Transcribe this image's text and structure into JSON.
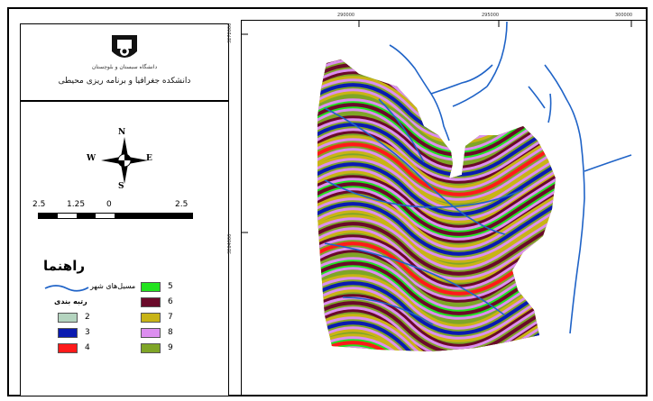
{
  "header": {
    "logo_caption": "دانشگاه سیستان و بلوچستان",
    "title": "دانشکده جغرافیا و برنامه ریزی محیطی"
  },
  "compass": {
    "n": "N",
    "s": "S",
    "e": "E",
    "w": "W"
  },
  "scale": {
    "labels": [
      "2.5",
      "1.25",
      "0",
      "2.5"
    ]
  },
  "legend": {
    "title": "راهنما",
    "river_label": "مسیل‌های شهر",
    "elevation_title": "رتبه بندی",
    "classes": [
      {
        "label": "2",
        "color": "#b4d4bf"
      },
      {
        "label": "3",
        "color": "#0a1ab0"
      },
      {
        "label": "4",
        "color": "#ff1a1a"
      },
      {
        "label": "5",
        "color": "#22e31f"
      },
      {
        "label": "6",
        "color": "#6a0a2a"
      },
      {
        "label": "7",
        "color": "#c8b416"
      },
      {
        "label": "8",
        "color": "#dc8ef0"
      },
      {
        "label": "9",
        "color": "#7fa527"
      }
    ]
  },
  "map": {
    "x_ticks": [
      "290000",
      "295000",
      "300000"
    ],
    "y_ticks": [
      "3272000",
      "3264000"
    ],
    "river_color": "#1f63c7"
  }
}
